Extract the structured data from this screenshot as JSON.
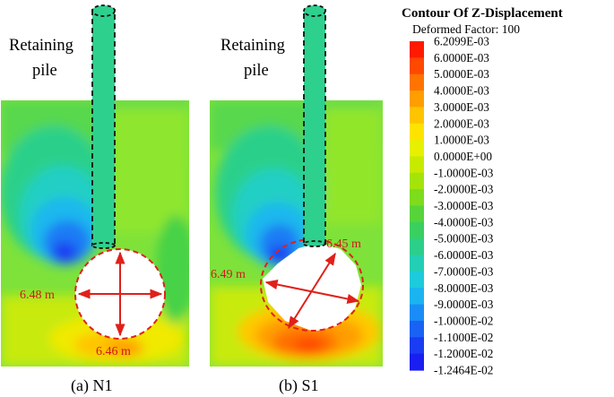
{
  "legend": {
    "title": "Contour Of Z-Displacement",
    "subtitle": "Deformed Factor: 100",
    "labels": [
      "6.2099E-03",
      "6.0000E-03",
      "5.0000E-03",
      "4.0000E-03",
      "3.0000E-03",
      "2.0000E-03",
      "1.0000E-03",
      "0.0000E+00",
      "-1.0000E-03",
      "-2.0000E-03",
      "-3.0000E-03",
      "-4.0000E-03",
      "-5.0000E-03",
      "-6.0000E-03",
      "-7.0000E-03",
      "-8.0000E-03",
      "-9.0000E-03",
      "-1.0000E-02",
      "-1.1000E-02",
      "-1.2000E-02",
      "-1.2464E-02"
    ],
    "colors": [
      "#ff1a00",
      "#ff4800",
      "#ff7400",
      "#ff9e00",
      "#ffc400",
      "#fee300",
      "#e7f000",
      "#c8ea00",
      "#a4e40a",
      "#7ddc1c",
      "#56d43a",
      "#39d060",
      "#2ccf8a",
      "#23cfb4",
      "#1dcbdc",
      "#1bb4f0",
      "#1a8cf6",
      "#1a62f4",
      "#1a3cf2",
      "#1a1ef0"
    ]
  },
  "panels": [
    {
      "id": "N1",
      "pile_label_line1": "Retaining",
      "pile_label_line2": "pile",
      "caption": "(a) N1",
      "dim_horizontal": "6.48 m",
      "dim_vertical": "6.46 m"
    },
    {
      "id": "S1",
      "pile_label_line1": "Retaining",
      "pile_label_line2": "pile",
      "caption": "(b) S1",
      "dim_horizontal": "6.49 m",
      "dim_vertical": "6.45 m"
    }
  ]
}
